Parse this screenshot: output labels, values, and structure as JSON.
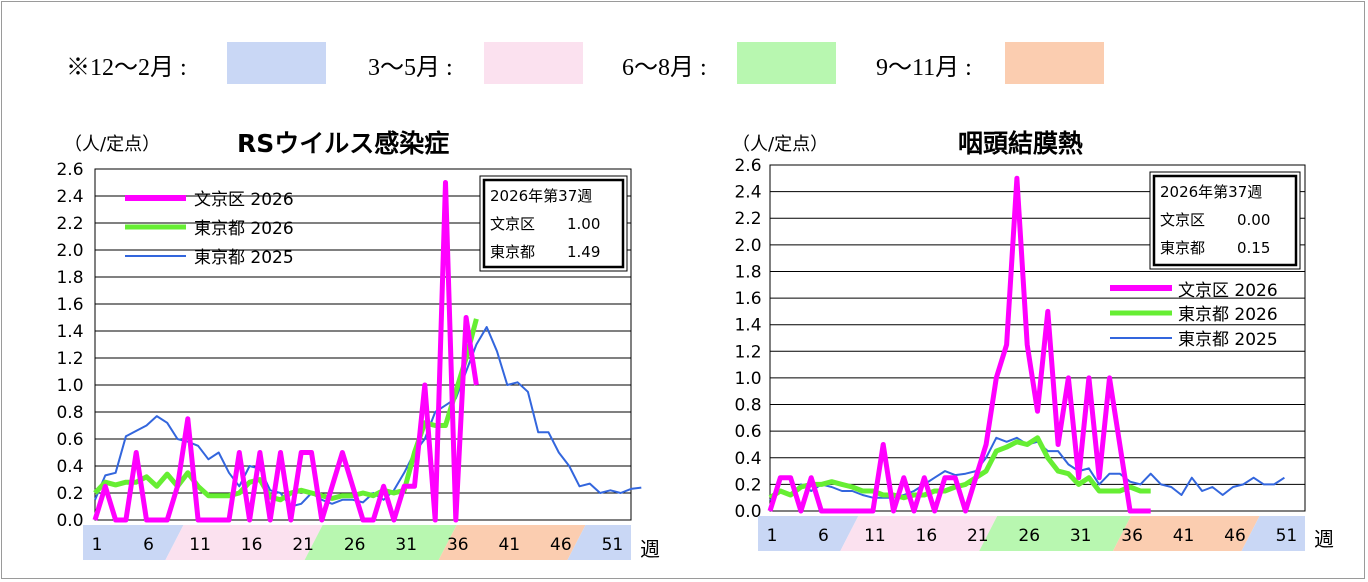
{
  "season_legend": {
    "items": [
      {
        "label": "※12～2月 :",
        "color": "#c9d7f5"
      },
      {
        "label": "3～5月 :",
        "color": "#fbe1ef"
      },
      {
        "label": "6～8月 :",
        "color": "#b8f7b0"
      },
      {
        "label": "9～11月 :",
        "color": "#fbcdb0"
      }
    ]
  },
  "week_band": {
    "unit": "週",
    "labels": [
      "1",
      "6",
      "11",
      "16",
      "21",
      "26",
      "31",
      "36",
      "41",
      "46",
      "51"
    ]
  },
  "chart_data": [
    {
      "type": "line",
      "title": "RSウイルス感染症",
      "ylabel": "（人/定点）",
      "xlabel": "週",
      "ylim": [
        0,
        2.6
      ],
      "yticks": [
        "0.0",
        "0.2",
        "0.4",
        "0.6",
        "0.8",
        "1.0",
        "1.2",
        "1.4",
        "1.6",
        "1.8",
        "2.0",
        "2.2",
        "2.4",
        "2.6"
      ],
      "grid": true,
      "legend_position": "top-left",
      "info_box": {
        "line1": "2026年第37週",
        "row1_label": "文京区",
        "row1_value": "1.00",
        "row2_label": "東京都",
        "row2_value": "1.49"
      },
      "series": [
        {
          "name": "文京区 2026",
          "color": "#ff00ff",
          "values": [
            0,
            0.25,
            0,
            0,
            0.5,
            0,
            0,
            0,
            0.25,
            0.75,
            0,
            0,
            0,
            0,
            0.5,
            0,
            0.5,
            0,
            0.5,
            0,
            0.5,
            0.5,
            0,
            0.25,
            0.5,
            0.25,
            0,
            0,
            0.25,
            0,
            0.25,
            0.25,
            1.0,
            0,
            2.5,
            0,
            1.5,
            1.0
          ]
        },
        {
          "name": "東京都 2026",
          "color": "#66ee33",
          "values": [
            0.2,
            0.28,
            0.26,
            0.28,
            0.28,
            0.32,
            0.25,
            0.34,
            0.25,
            0.35,
            0.25,
            0.18,
            0.18,
            0.18,
            0.2,
            0.28,
            0.3,
            0.17,
            0.15,
            0.2,
            0.22,
            0.2,
            0.18,
            0.16,
            0.18,
            0.18,
            0.2,
            0.18,
            0.22,
            0.2,
            0.22,
            0.5,
            0.72,
            0.7,
            0.7,
            0.95,
            1.2,
            1.49
          ]
        },
        {
          "name": "東京都 2025",
          "color": "#3366dd",
          "values": [
            0.15,
            0.33,
            0.35,
            0.62,
            0.66,
            0.7,
            0.77,
            0.72,
            0.6,
            0.58,
            0.55,
            0.45,
            0.5,
            0.35,
            0.25,
            0.4,
            0.38,
            0.22,
            0.2,
            0.1,
            0.12,
            0.2,
            0.15,
            0.12,
            0.15,
            0.15,
            0.13,
            0.2,
            0.15,
            0.22,
            0.35,
            0.5,
            0.6,
            0.8,
            0.85,
            0.9,
            1.1,
            1.3,
            1.43,
            1.25,
            1.0,
            1.02,
            0.95,
            0.65,
            0.65,
            0.5,
            0.4,
            0.25,
            0.27,
            0.2,
            0.22,
            0.2,
            0.23,
            0.24
          ]
        }
      ]
    },
    {
      "type": "line",
      "title": "咽頭結膜熱",
      "ylabel": "（人/定点）",
      "xlabel": "週",
      "ylim": [
        0,
        2.6
      ],
      "yticks": [
        "0.0",
        "0.2",
        "0.4",
        "0.6",
        "0.8",
        "1.0",
        "1.2",
        "1.4",
        "1.6",
        "1.8",
        "2.0",
        "2.2",
        "2.4",
        "2.6"
      ],
      "grid": true,
      "legend_position": "right",
      "info_box": {
        "line1": "2026年第37週",
        "row1_label": "文京区",
        "row1_value": "0.00",
        "row2_label": "東京都",
        "row2_value": "0.15"
      },
      "series": [
        {
          "name": "文京区 2026",
          "color": "#ff00ff",
          "values": [
            0,
            0.25,
            0.25,
            0,
            0.25,
            0,
            0,
            0,
            0,
            0,
            0,
            0.5,
            0,
            0.25,
            0,
            0.25,
            0,
            0.25,
            0.25,
            0,
            0.25,
            0.5,
            1.0,
            1.25,
            2.5,
            1.25,
            0.75,
            1.5,
            0.5,
            1.0,
            0.25,
            1.0,
            0.25,
            1.0,
            0.5,
            0,
            0,
            0
          ]
        },
        {
          "name": "東京都 2026",
          "color": "#66ee33",
          "values": [
            0.1,
            0.15,
            0.12,
            0.18,
            0.2,
            0.2,
            0.22,
            0.2,
            0.18,
            0.15,
            0.15,
            0.12,
            0.12,
            0.1,
            0.12,
            0.12,
            0.15,
            0.15,
            0.18,
            0.2,
            0.25,
            0.3,
            0.45,
            0.48,
            0.52,
            0.5,
            0.55,
            0.4,
            0.3,
            0.28,
            0.2,
            0.25,
            0.15,
            0.15,
            0.15,
            0.18,
            0.15,
            0.15
          ]
        },
        {
          "name": "東京都 2025",
          "color": "#3366dd",
          "values": [
            0.08,
            0.15,
            0.12,
            0.2,
            0.15,
            0.2,
            0.18,
            0.15,
            0.15,
            0.12,
            0.1,
            0.1,
            0.1,
            0.12,
            0.15,
            0.2,
            0.25,
            0.3,
            0.27,
            0.28,
            0.3,
            0.4,
            0.55,
            0.52,
            0.55,
            0.5,
            0.52,
            0.45,
            0.45,
            0.35,
            0.3,
            0.32,
            0.2,
            0.28,
            0.28,
            0.22,
            0.2,
            0.28,
            0.2,
            0.18,
            0.12,
            0.25,
            0.15,
            0.18,
            0.12,
            0.18,
            0.2,
            0.25,
            0.2,
            0.2,
            0.25
          ]
        }
      ]
    }
  ]
}
